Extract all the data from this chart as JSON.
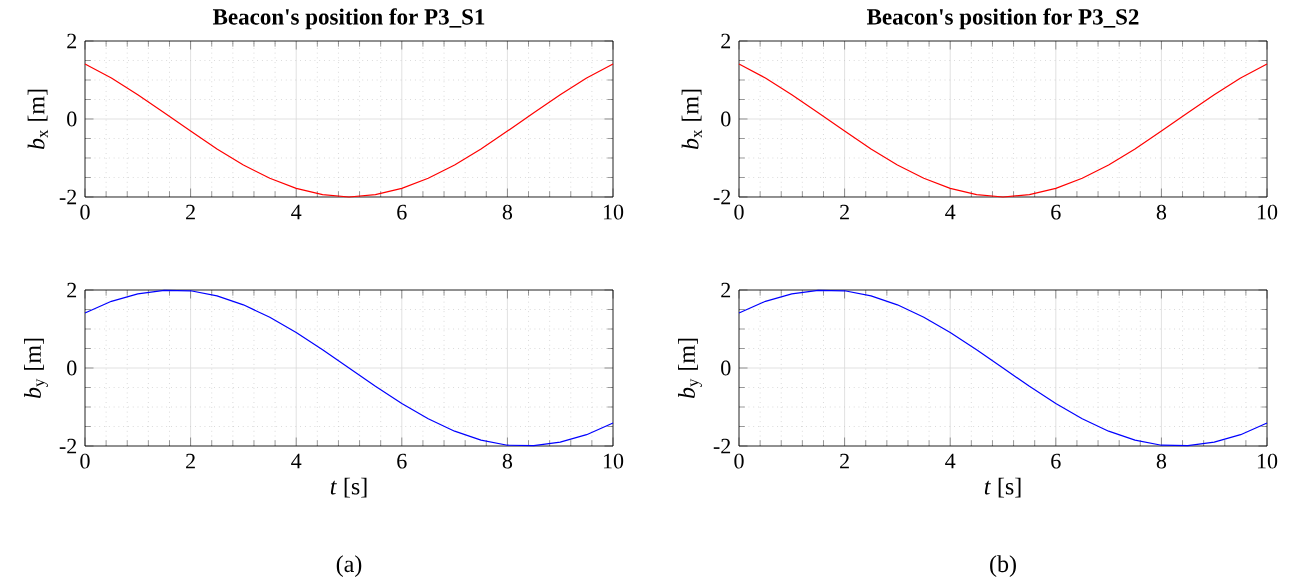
{
  "chart_data": [
    {
      "type": "line",
      "title": "**Beacon's position for P3_S1**",
      "ylabel": "*b*$_{x}$ [m]",
      "x": [
        0,
        0.5,
        1,
        1.5,
        2,
        2.5,
        3,
        3.5,
        4,
        4.5,
        5,
        5.5,
        6,
        6.5,
        7,
        7.5,
        8,
        8.5,
        9,
        9.5,
        10
      ],
      "series": [
        {
          "color": "#ff0000",
          "values": [
            1.41,
            1.05,
            0.62,
            0.16,
            -0.31,
            -0.77,
            -1.18,
            -1.52,
            -1.78,
            -1.94,
            -2,
            -1.94,
            -1.78,
            -1.52,
            -1.18,
            -0.77,
            -0.31,
            0.16,
            0.62,
            1.05,
            1.41
          ]
        }
      ],
      "xlim": [
        0,
        10
      ],
      "ylim": [
        -2,
        2
      ],
      "xticks": [
        0,
        2,
        4,
        6,
        8,
        10
      ],
      "yticks": [
        -2,
        0,
        2
      ],
      "grid": true
    },
    {
      "type": "line",
      "title": "**Beacon's position for P3_S2**",
      "ylabel": "*b*$_{x}$ [m]",
      "x": [
        0,
        0.5,
        1,
        1.5,
        2,
        2.5,
        3,
        3.5,
        4,
        4.5,
        5,
        5.5,
        6,
        6.5,
        7,
        7.5,
        8,
        8.5,
        9,
        9.5,
        10
      ],
      "series": [
        {
          "color": "#ff0000",
          "values": [
            1.41,
            1.05,
            0.62,
            0.16,
            -0.31,
            -0.77,
            -1.18,
            -1.52,
            -1.78,
            -1.94,
            -2,
            -1.94,
            -1.78,
            -1.52,
            -1.18,
            -0.77,
            -0.31,
            0.16,
            0.62,
            1.05,
            1.41
          ]
        }
      ],
      "xlim": [
        0,
        10
      ],
      "ylim": [
        -2,
        2
      ],
      "xticks": [
        0,
        2,
        4,
        6,
        8,
        10
      ],
      "yticks": [
        -2,
        0,
        2
      ],
      "grid": true
    },
    {
      "type": "line",
      "xlabel": "*t* [s]",
      "ylabel": "*b*$_{y}$ [m]",
      "annotations": [
        "(a)"
      ],
      "x": [
        0,
        0.5,
        1,
        1.5,
        2,
        2.5,
        3,
        3.5,
        4,
        4.5,
        5,
        5.5,
        6,
        6.5,
        7,
        7.5,
        8,
        8.5,
        9,
        9.5,
        10
      ],
      "series": [
        {
          "color": "#0000ff",
          "values": [
            1.41,
            1.71,
            1.9,
            1.99,
            1.98,
            1.85,
            1.62,
            1.3,
            0.91,
            0.47,
            0,
            -0.47,
            -0.91,
            -1.3,
            -1.62,
            -1.85,
            -1.98,
            -1.99,
            -1.9,
            -1.71,
            -1.41
          ]
        }
      ],
      "xlim": [
        0,
        10
      ],
      "ylim": [
        -2,
        2
      ],
      "xticks": [
        0,
        2,
        4,
        6,
        8,
        10
      ],
      "yticks": [
        -2,
        0,
        2
      ],
      "grid": true
    },
    {
      "type": "line",
      "xlabel": "*t* [s]",
      "ylabel": "*b*$_{y}$ [m]",
      "annotations": [
        "(b)"
      ],
      "x": [
        0,
        0.5,
        1,
        1.5,
        2,
        2.5,
        3,
        3.5,
        4,
        4.5,
        5,
        5.5,
        6,
        6.5,
        7,
        7.5,
        8,
        8.5,
        9,
        9.5,
        10
      ],
      "series": [
        {
          "color": "#0000ff",
          "values": [
            1.41,
            1.71,
            1.9,
            1.99,
            1.98,
            1.85,
            1.62,
            1.3,
            0.91,
            0.47,
            0,
            -0.47,
            -0.91,
            -1.3,
            -1.62,
            -1.85,
            -1.98,
            -1.99,
            -1.9,
            -1.71,
            -1.41
          ]
        }
      ],
      "xlim": [
        0,
        10
      ],
      "ylim": [
        -2,
        2
      ],
      "xticks": [
        0,
        2,
        4,
        6,
        8,
        10
      ],
      "yticks": [
        -2,
        0,
        2
      ],
      "grid": true
    }
  ]
}
